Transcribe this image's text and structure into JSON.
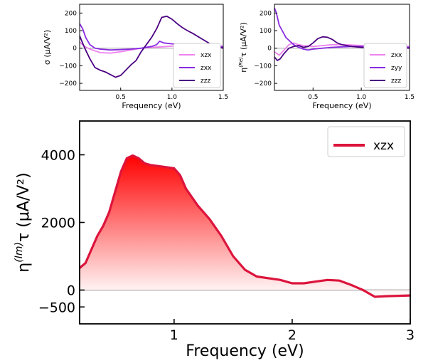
{
  "chart_data": [
    {
      "type": "line",
      "xlabel": "Frequency (eV)",
      "ylabel": "σ (μA/V²)",
      "xlim": [
        0.1,
        1.5
      ],
      "ylim": [
        -240,
        250
      ],
      "xticks": [
        0.5,
        1.0,
        1.5
      ],
      "xtick_labels": [
        "0.5",
        "1.0",
        "1.5"
      ],
      "yticks": [
        -200,
        -100,
        0,
        100,
        200
      ],
      "ytick_labels": [
        "−200",
        "−100",
        "0",
        "100",
        "200"
      ],
      "legend_position": "bottom-right",
      "zero_line": true,
      "series": [
        {
          "name": "xzx",
          "color": "#ee82ee",
          "points": [
            [
              0.1,
              35
            ],
            [
              0.15,
              10
            ],
            [
              0.2,
              -5
            ],
            [
              0.3,
              -25
            ],
            [
              0.4,
              -28
            ],
            [
              0.5,
              -20
            ],
            [
              0.6,
              -10
            ],
            [
              0.7,
              0
            ],
            [
              0.8,
              5
            ],
            [
              0.9,
              8
            ],
            [
              1.0,
              12
            ],
            [
              1.1,
              15
            ],
            [
              1.2,
              15
            ],
            [
              1.3,
              14
            ],
            [
              1.4,
              13
            ],
            [
              1.5,
              12
            ]
          ]
        },
        {
          "name": "zxx",
          "color": "#8a2be2",
          "points": [
            [
              0.1,
              140
            ],
            [
              0.13,
              110
            ],
            [
              0.16,
              60
            ],
            [
              0.2,
              20
            ],
            [
              0.25,
              0
            ],
            [
              0.3,
              -5
            ],
            [
              0.4,
              -10
            ],
            [
              0.5,
              -8
            ],
            [
              0.6,
              -5
            ],
            [
              0.7,
              0
            ],
            [
              0.8,
              10
            ],
            [
              0.85,
              20
            ],
            [
              0.88,
              40
            ],
            [
              0.92,
              30
            ],
            [
              1.0,
              25
            ],
            [
              1.1,
              20
            ],
            [
              1.2,
              18
            ],
            [
              1.3,
              15
            ],
            [
              1.4,
              10
            ],
            [
              1.5,
              8
            ]
          ]
        },
        {
          "name": "zzz",
          "color": "#4b0082",
          "points": [
            [
              0.1,
              70
            ],
            [
              0.15,
              0
            ],
            [
              0.2,
              -60
            ],
            [
              0.25,
              -110
            ],
            [
              0.3,
              -125
            ],
            [
              0.35,
              -135
            ],
            [
              0.4,
              -150
            ],
            [
              0.45,
              -165
            ],
            [
              0.5,
              -155
            ],
            [
              0.55,
              -125
            ],
            [
              0.6,
              -95
            ],
            [
              0.65,
              -70
            ],
            [
              0.7,
              -20
            ],
            [
              0.75,
              20
            ],
            [
              0.8,
              60
            ],
            [
              0.85,
              110
            ],
            [
              0.9,
              175
            ],
            [
              0.95,
              182
            ],
            [
              1.0,
              165
            ],
            [
              1.05,
              140
            ],
            [
              1.1,
              118
            ],
            [
              1.15,
              100
            ],
            [
              1.2,
              85
            ],
            [
              1.3,
              50
            ],
            [
              1.4,
              15
            ],
            [
              1.5,
              0
            ]
          ]
        }
      ]
    },
    {
      "type": "line",
      "xlabel": "Frequency (eV)",
      "ylabel": "η(Re)τ (μA/V²)",
      "ylabel_parts": {
        "sym": "η",
        "sup": "(Re)",
        "rest": "τ (μA/V²)"
      },
      "xlim": [
        0.1,
        1.5
      ],
      "ylim": [
        -240,
        250
      ],
      "xticks": [
        0.5,
        1.0,
        1.5
      ],
      "xtick_labels": [
        "0.5",
        "1.0",
        "1.5"
      ],
      "yticks": [
        -200,
        -100,
        0,
        100,
        200
      ],
      "ytick_labels": [
        "−200",
        "−100",
        "0",
        "100",
        "200"
      ],
      "legend_position": "bottom-right",
      "zero_line": true,
      "series": [
        {
          "name": "zxx",
          "color": "#ee82ee",
          "points": [
            [
              0.1,
              -20
            ],
            [
              0.15,
              -40
            ],
            [
              0.2,
              -10
            ],
            [
              0.25,
              20
            ],
            [
              0.3,
              30
            ],
            [
              0.35,
              20
            ],
            [
              0.4,
              15
            ],
            [
              0.5,
              10
            ],
            [
              0.6,
              15
            ],
            [
              0.7,
              20
            ],
            [
              0.8,
              20
            ],
            [
              0.9,
              18
            ],
            [
              1.0,
              15
            ],
            [
              1.1,
              15
            ],
            [
              1.2,
              20
            ],
            [
              1.3,
              25
            ],
            [
              1.4,
              15
            ],
            [
              1.5,
              10
            ]
          ]
        },
        {
          "name": "zyy",
          "color": "#8a2be2",
          "points": [
            [
              0.1,
              230
            ],
            [
              0.12,
              200
            ],
            [
              0.15,
              130
            ],
            [
              0.18,
              100
            ],
            [
              0.22,
              60
            ],
            [
              0.26,
              40
            ],
            [
              0.3,
              20
            ],
            [
              0.35,
              5
            ],
            [
              0.4,
              -5
            ],
            [
              0.45,
              -10
            ],
            [
              0.5,
              -5
            ],
            [
              0.6,
              0
            ],
            [
              0.7,
              5
            ],
            [
              0.8,
              8
            ],
            [
              0.9,
              10
            ],
            [
              1.0,
              10
            ],
            [
              1.1,
              8
            ],
            [
              1.2,
              10
            ],
            [
              1.3,
              12
            ],
            [
              1.4,
              8
            ],
            [
              1.5,
              5
            ]
          ]
        },
        {
          "name": "zzz",
          "color": "#4b0082",
          "points": [
            [
              0.1,
              -50
            ],
            [
              0.13,
              -70
            ],
            [
              0.16,
              -60
            ],
            [
              0.2,
              -30
            ],
            [
              0.25,
              0
            ],
            [
              0.3,
              10
            ],
            [
              0.35,
              15
            ],
            [
              0.4,
              5
            ],
            [
              0.45,
              10
            ],
            [
              0.5,
              30
            ],
            [
              0.55,
              55
            ],
            [
              0.6,
              65
            ],
            [
              0.65,
              62
            ],
            [
              0.7,
              50
            ],
            [
              0.75,
              30
            ],
            [
              0.8,
              20
            ],
            [
              0.9,
              10
            ],
            [
              1.0,
              5
            ],
            [
              1.1,
              0
            ],
            [
              1.2,
              2
            ],
            [
              1.3,
              5
            ],
            [
              1.4,
              3
            ],
            [
              1.5,
              0
            ]
          ]
        }
      ]
    },
    {
      "type": "area",
      "xlabel": "Frequency (eV)",
      "ylabel": "η(Im)τ (μA/V²)",
      "ylabel_parts": {
        "sym": "η",
        "sup": "(Im)",
        "rest": "τ (μA/V²)"
      },
      "xlim": [
        0.2,
        3.0
      ],
      "ylim": [
        -1000,
        5000
      ],
      "xticks": [
        1,
        2,
        3
      ],
      "xtick_labels": [
        "1",
        "2",
        "3"
      ],
      "yticks": [
        -500,
        0,
        2000,
        4000
      ],
      "ytick_labels": [
        "−500",
        "0",
        "2000",
        "4000"
      ],
      "legend_position": "top-right",
      "zero_line": true,
      "series": [
        {
          "name": "xzx",
          "color": "#dc143c",
          "fill_top": "#ff0000",
          "fill_bottom": "#ffffff",
          "points": [
            [
              0.2,
              650
            ],
            [
              0.25,
              800
            ],
            [
              0.3,
              1200
            ],
            [
              0.35,
              1600
            ],
            [
              0.4,
              1900
            ],
            [
              0.45,
              2300
            ],
            [
              0.5,
              2900
            ],
            [
              0.55,
              3500
            ],
            [
              0.6,
              3900
            ],
            [
              0.65,
              3980
            ],
            [
              0.7,
              3900
            ],
            [
              0.75,
              3750
            ],
            [
              0.8,
              3700
            ],
            [
              0.9,
              3650
            ],
            [
              1.0,
              3600
            ],
            [
              1.05,
              3400
            ],
            [
              1.1,
              3000
            ],
            [
              1.2,
              2500
            ],
            [
              1.3,
              2100
            ],
            [
              1.4,
              1600
            ],
            [
              1.5,
              1000
            ],
            [
              1.6,
              600
            ],
            [
              1.7,
              400
            ],
            [
              1.8,
              350
            ],
            [
              1.9,
              300
            ],
            [
              2.0,
              200
            ],
            [
              2.1,
              200
            ],
            [
              2.2,
              250
            ],
            [
              2.3,
              300
            ],
            [
              2.4,
              280
            ],
            [
              2.5,
              150
            ],
            [
              2.6,
              0
            ],
            [
              2.7,
              -200
            ],
            [
              2.8,
              -180
            ],
            [
              2.9,
              -170
            ],
            [
              3.0,
              -160
            ]
          ]
        }
      ]
    }
  ]
}
